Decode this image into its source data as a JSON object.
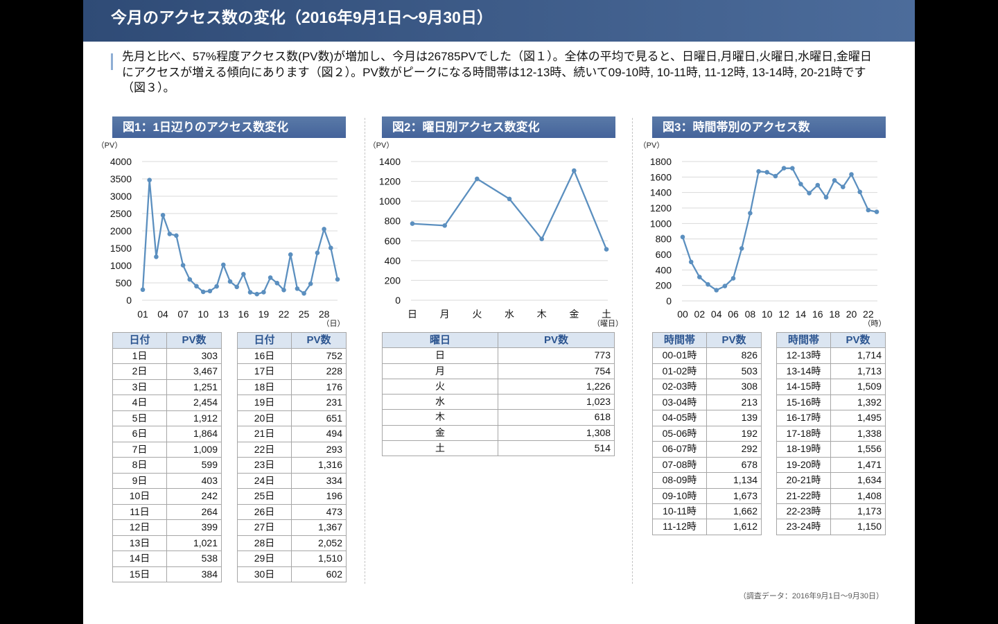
{
  "page": {
    "title": "今月のアクセス数の変化（2016年9月1日～9月30日）",
    "summary": "先月と比べ、57%程度アクセス数(PV数)が増加し、今月は26785PVでした（図１）。全体の平均で見ると、日曜日,月曜日,火曜日,水曜日,金曜日にアクセスが増える傾向にあります（図２）。PV数がピークになる時間帯は12-13時、続いて09-10時, 10-11時, 11-12時, 13-14時, 20-21時です（図３）。",
    "footnote": "（調査データ：2016年9月1日～9月30日）"
  },
  "colors": {
    "header_bar_dark": "#2f4b76",
    "header_bar_light": "#4c6c9b",
    "figure_heading_top": "#5a7aa8",
    "figure_heading_bottom": "#44639a",
    "series_line": "#5b8fbf",
    "table_header_bg": "#dbe5f1",
    "table_header_text": "#2c5590",
    "accent_bar": "#8eaed4",
    "gridline": "#d9d9d9"
  },
  "chart_data": [
    {
      "title": "図1：1日辺りのアクセス数変化",
      "type": "line",
      "ylabel": "（PV）",
      "xlabel": "（日）",
      "x": [
        1,
        2,
        3,
        4,
        5,
        6,
        7,
        8,
        9,
        10,
        11,
        12,
        13,
        14,
        15,
        16,
        17,
        18,
        19,
        20,
        21,
        22,
        23,
        24,
        25,
        26,
        27,
        28,
        29,
        30
      ],
      "x_ticks": [
        1,
        4,
        7,
        10,
        13,
        16,
        19,
        22,
        25,
        28
      ],
      "x_tick_labels": [
        "01",
        "04",
        "07",
        "10",
        "13",
        "16",
        "19",
        "22",
        "25",
        "28"
      ],
      "values": [
        303,
        3467,
        1251,
        2454,
        1912,
        1864,
        1009,
        599,
        403,
        242,
        264,
        399,
        1021,
        538,
        384,
        752,
        228,
        176,
        231,
        651,
        494,
        293,
        1316,
        334,
        196,
        473,
        1367,
        2052,
        1510,
        602
      ],
      "ylim": [
        0,
        4000
      ],
      "y_ticks": [
        0,
        500,
        1000,
        1500,
        2000,
        2500,
        3000,
        3500,
        4000
      ],
      "grid": true
    },
    {
      "title": "図2：曜日別アクセス数変化",
      "type": "line",
      "ylabel": "（PV）",
      "xlabel": "（曜日）",
      "categories": [
        "日",
        "月",
        "火",
        "水",
        "木",
        "金",
        "土"
      ],
      "values": [
        773,
        754,
        1226,
        1023,
        618,
        1308,
        514
      ],
      "ylim": [
        0,
        1400
      ],
      "y_ticks": [
        0,
        200,
        400,
        600,
        800,
        1000,
        1200,
        1400
      ],
      "grid": true
    },
    {
      "title": "図3：時間帯別のアクセス数",
      "type": "line",
      "ylabel": "（PV）",
      "xlabel": "（時）",
      "x": [
        0,
        1,
        2,
        3,
        4,
        5,
        6,
        7,
        8,
        9,
        10,
        11,
        12,
        13,
        14,
        15,
        16,
        17,
        18,
        19,
        20,
        21,
        22,
        23
      ],
      "x_ticks": [
        0,
        2,
        4,
        6,
        8,
        10,
        12,
        14,
        16,
        18,
        20,
        22
      ],
      "x_tick_labels": [
        "00",
        "02",
        "04",
        "06",
        "08",
        "10",
        "12",
        "14",
        "16",
        "18",
        "20",
        "22"
      ],
      "values": [
        826,
        503,
        308,
        213,
        139,
        192,
        292,
        678,
        1134,
        1673,
        1662,
        1612,
        1714,
        1713,
        1509,
        1392,
        1495,
        1338,
        1556,
        1471,
        1634,
        1408,
        1173,
        1150
      ],
      "ylim": [
        0,
        1800
      ],
      "y_ticks": [
        0,
        200,
        400,
        600,
        800,
        1000,
        1200,
        1400,
        1600,
        1800
      ],
      "grid": true
    }
  ],
  "figures": [
    {
      "tables": [
        {
          "headers": [
            "日付",
            "PV数"
          ],
          "rows": [
            [
              "1日",
              "303"
            ],
            [
              "2日",
              "3,467"
            ],
            [
              "3日",
              "1,251"
            ],
            [
              "4日",
              "2,454"
            ],
            [
              "5日",
              "1,912"
            ],
            [
              "6日",
              "1,864"
            ],
            [
              "7日",
              "1,009"
            ],
            [
              "8日",
              "599"
            ],
            [
              "9日",
              "403"
            ],
            [
              "10日",
              "242"
            ],
            [
              "11日",
              "264"
            ],
            [
              "12日",
              "399"
            ],
            [
              "13日",
              "1,021"
            ],
            [
              "14日",
              "538"
            ],
            [
              "15日",
              "384"
            ]
          ]
        },
        {
          "headers": [
            "日付",
            "PV数"
          ],
          "rows": [
            [
              "16日",
              "752"
            ],
            [
              "17日",
              "228"
            ],
            [
              "18日",
              "176"
            ],
            [
              "19日",
              "231"
            ],
            [
              "20日",
              "651"
            ],
            [
              "21日",
              "494"
            ],
            [
              "22日",
              "293"
            ],
            [
              "23日",
              "1,316"
            ],
            [
              "24日",
              "334"
            ],
            [
              "25日",
              "196"
            ],
            [
              "26日",
              "473"
            ],
            [
              "27日",
              "1,367"
            ],
            [
              "28日",
              "2,052"
            ],
            [
              "29日",
              "1,510"
            ],
            [
              "30日",
              "602"
            ]
          ]
        }
      ]
    },
    {
      "tables": [
        {
          "headers": [
            "曜日",
            "PV数"
          ],
          "rows": [
            [
              "日",
              "773"
            ],
            [
              "月",
              "754"
            ],
            [
              "火",
              "1,226"
            ],
            [
              "水",
              "1,023"
            ],
            [
              "木",
              "618"
            ],
            [
              "金",
              "1,308"
            ],
            [
              "土",
              "514"
            ]
          ]
        }
      ]
    },
    {
      "tables": [
        {
          "headers": [
            "時間帯",
            "PV数"
          ],
          "rows": [
            [
              "00-01時",
              "826"
            ],
            [
              "01-02時",
              "503"
            ],
            [
              "02-03時",
              "308"
            ],
            [
              "03-04時",
              "213"
            ],
            [
              "04-05時",
              "139"
            ],
            [
              "05-06時",
              "192"
            ],
            [
              "06-07時",
              "292"
            ],
            [
              "07-08時",
              "678"
            ],
            [
              "08-09時",
              "1,134"
            ],
            [
              "09-10時",
              "1,673"
            ],
            [
              "10-11時",
              "1,662"
            ],
            [
              "11-12時",
              "1,612"
            ]
          ]
        },
        {
          "headers": [
            "時間帯",
            "PV数"
          ],
          "rows": [
            [
              "12-13時",
              "1,714"
            ],
            [
              "13-14時",
              "1,713"
            ],
            [
              "14-15時",
              "1,509"
            ],
            [
              "15-16時",
              "1,392"
            ],
            [
              "16-17時",
              "1,495"
            ],
            [
              "17-18時",
              "1,338"
            ],
            [
              "18-19時",
              "1,556"
            ],
            [
              "19-20時",
              "1,471"
            ],
            [
              "20-21時",
              "1,634"
            ],
            [
              "21-22時",
              "1,408"
            ],
            [
              "22-23時",
              "1,173"
            ],
            [
              "23-24時",
              "1,150"
            ]
          ]
        }
      ]
    }
  ]
}
